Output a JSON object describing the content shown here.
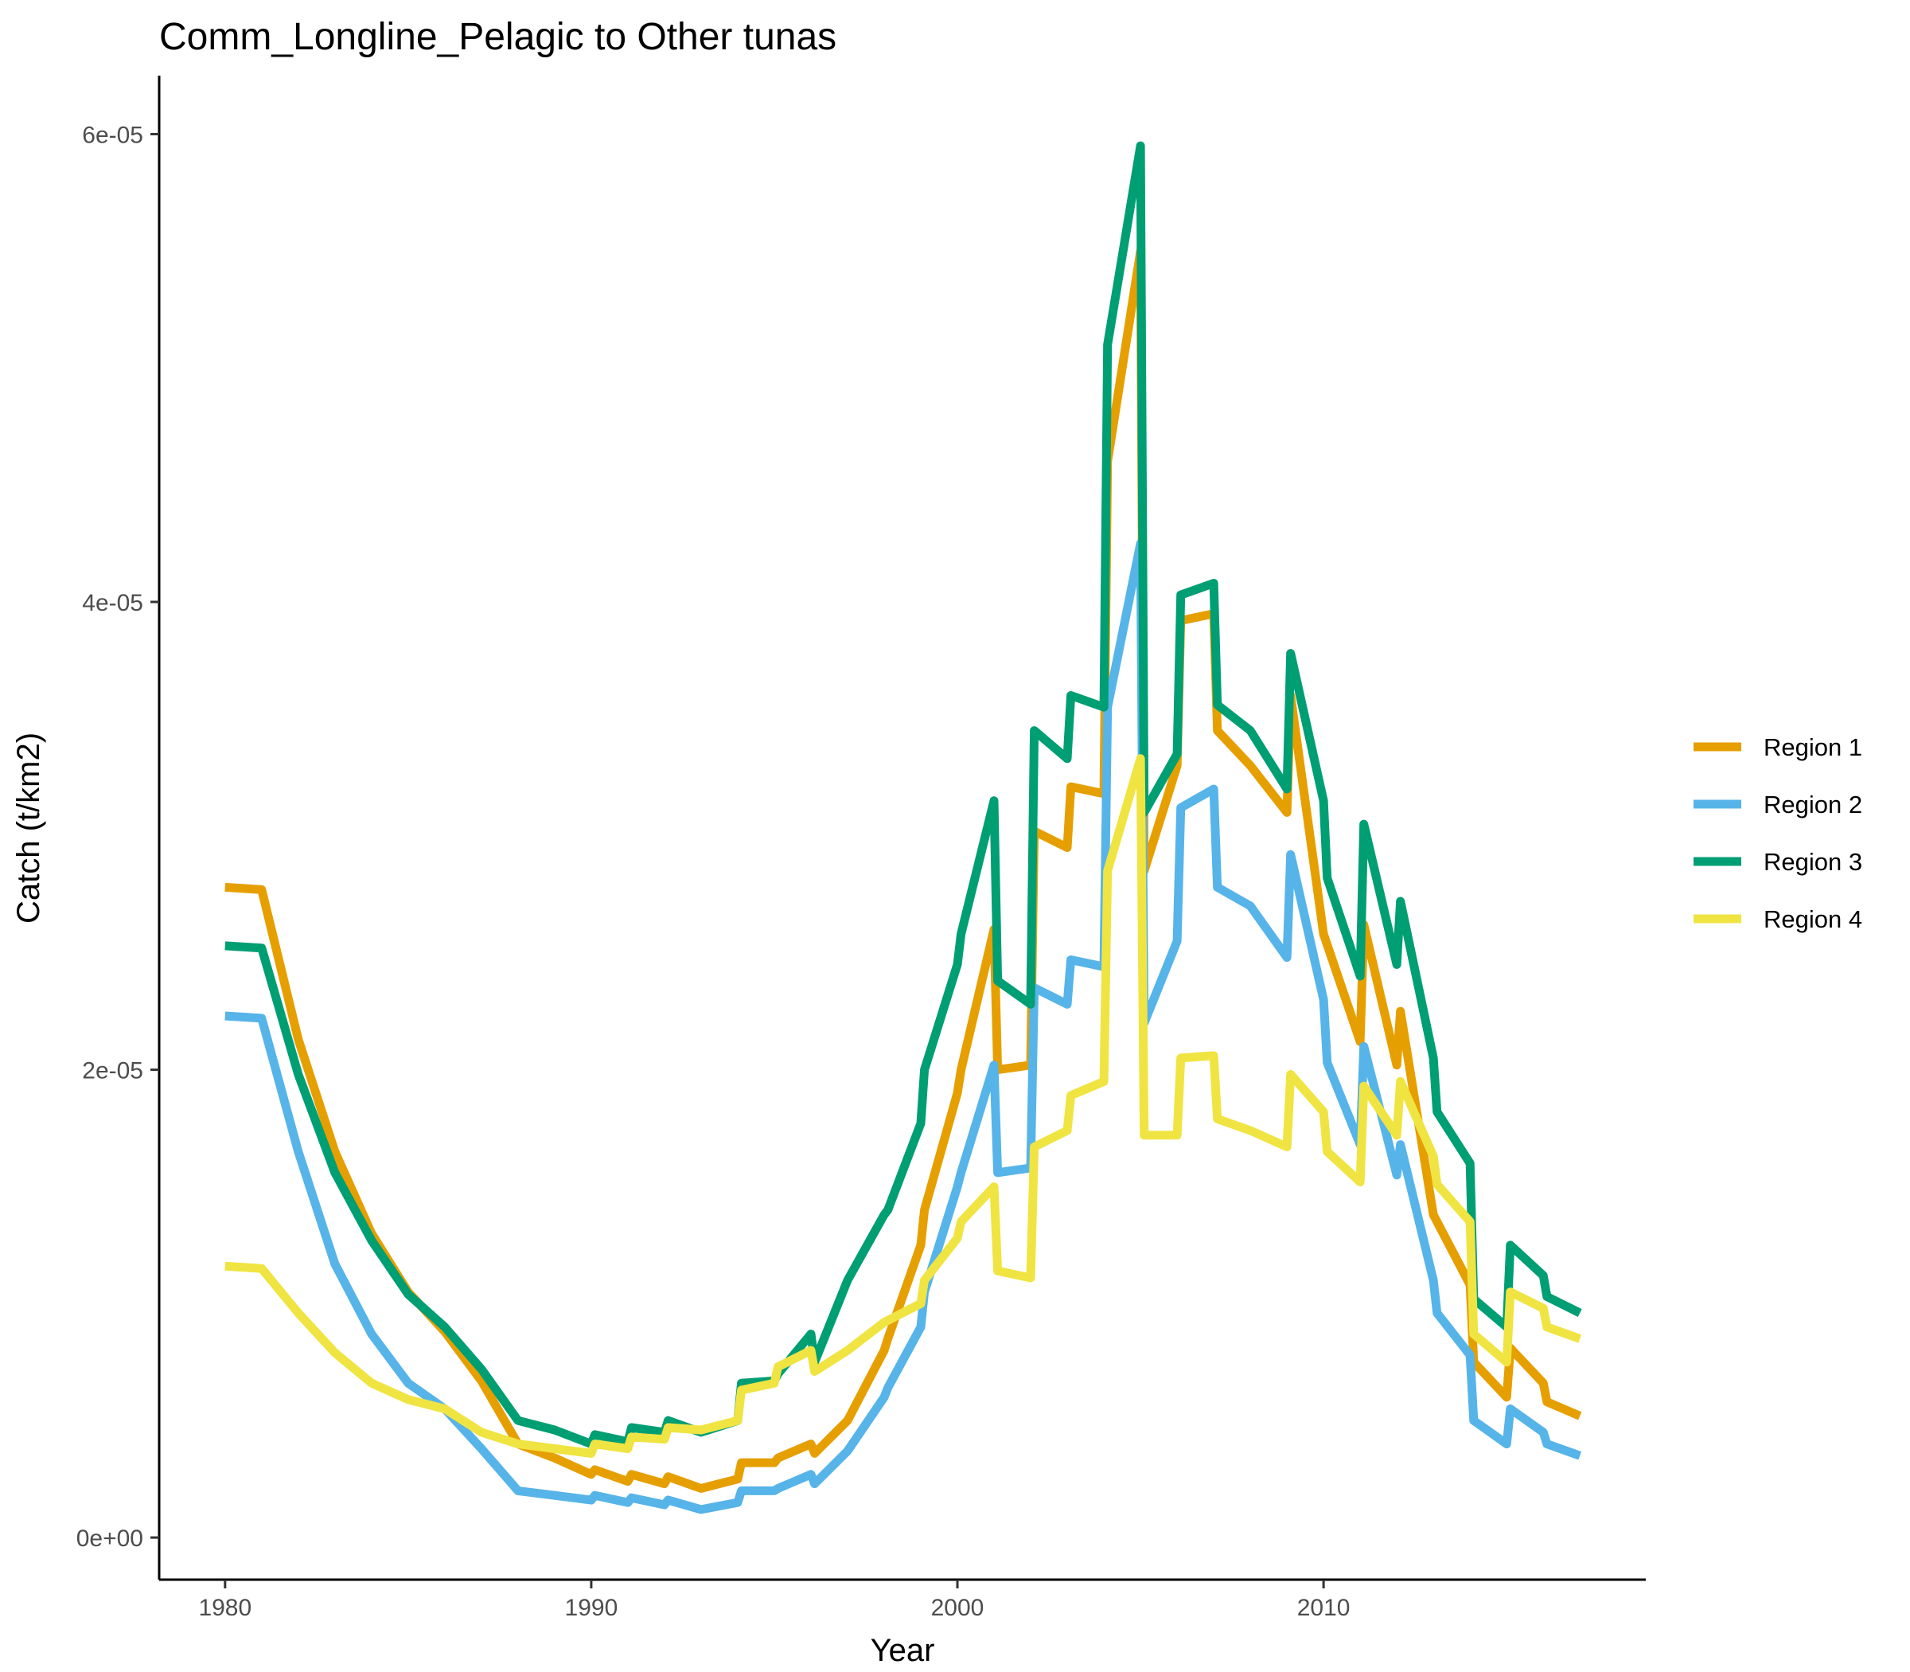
{
  "chart_data": {
    "type": "line",
    "title": "Comm_Longline_Pelagic to Other tunas",
    "xlabel": "Year",
    "ylabel": "Catch (t/km2)",
    "xlim": [
      1978.2,
      2018.8
    ],
    "ylim": [
      -1.8e-06,
      6.25e-05
    ],
    "x_ticks": [
      1980,
      1990,
      2000,
      2010
    ],
    "x_tick_labels": [
      "1980",
      "1990",
      "2000",
      "2010"
    ],
    "y_ticks": [
      0,
      2e-05,
      4e-05,
      6e-05
    ],
    "y_tick_labels": [
      "0e+00",
      "2e-05",
      "4e-05",
      "6e-05"
    ],
    "grid": false,
    "legend_position": "right",
    "series": [
      {
        "name": "Region 1",
        "color": "#E69F00",
        "points": [
          [
            1980,
            2.78e-05
          ],
          [
            1981,
            2.77e-05
          ],
          [
            1982,
            2.13e-05
          ],
          [
            1983,
            1.65e-05
          ],
          [
            1984,
            1.3e-05
          ],
          [
            1985,
            1.05e-05
          ],
          [
            1986,
            8.8e-06
          ],
          [
            1987,
            6.7e-06
          ],
          [
            1988,
            4e-06
          ],
          [
            1989,
            3.4e-06
          ],
          [
            1990,
            2.7e-06
          ],
          [
            1990.1,
            2.9e-06
          ],
          [
            1991,
            2.4e-06
          ],
          [
            1991.1,
            2.7e-06
          ],
          [
            1992,
            2.3e-06
          ],
          [
            1992.1,
            2.6e-06
          ],
          [
            1993,
            2.1e-06
          ],
          [
            1994,
            2.5e-06
          ],
          [
            1994.1,
            3.2e-06
          ],
          [
            1995,
            3.2e-06
          ],
          [
            1995.1,
            3.4e-06
          ],
          [
            1996,
            4e-06
          ],
          [
            1996.1,
            3.6e-06
          ],
          [
            1997,
            5e-06
          ],
          [
            1998,
            8e-06
          ],
          [
            1998.1,
            8.5e-06
          ],
          [
            1999,
            1.25e-05
          ],
          [
            1999.1,
            1.4e-05
          ],
          [
            2000,
            1.9e-05
          ],
          [
            2000.1,
            2e-05
          ],
          [
            2001,
            2.6e-05
          ],
          [
            2001.1,
            2e-05
          ],
          [
            2002,
            2.02e-05
          ],
          [
            2002.1,
            3.02e-05
          ],
          [
            2003,
            2.95e-05
          ],
          [
            2003.1,
            3.21e-05
          ],
          [
            2004,
            3.18e-05
          ],
          [
            2004.1,
            4.6e-05
          ],
          [
            2005,
            5.5e-05
          ],
          [
            2005.1,
            2.85e-05
          ],
          [
            2006,
            3.3e-05
          ],
          [
            2006.1,
            3.92e-05
          ],
          [
            2007,
            3.95e-05
          ],
          [
            2007.1,
            3.45e-05
          ],
          [
            2008,
            3.3e-05
          ],
          [
            2009,
            3.1e-05
          ],
          [
            2009.1,
            3.6e-05
          ],
          [
            2010,
            2.58e-05
          ],
          [
            2011,
            2.12e-05
          ],
          [
            2011.1,
            2.62e-05
          ],
          [
            2012,
            2.02e-05
          ],
          [
            2012.1,
            2.25e-05
          ],
          [
            2013,
            1.38e-05
          ],
          [
            2014,
            1.08e-05
          ],
          [
            2014.1,
            7.5e-06
          ],
          [
            2015,
            6e-06
          ],
          [
            2015.1,
            8.1e-06
          ],
          [
            2016,
            6.6e-06
          ],
          [
            2016.1,
            5.8e-06
          ],
          [
            2017,
            5.2e-06
          ]
        ]
      },
      {
        "name": "Region 2",
        "color": "#56B4E9",
        "points": [
          [
            1980,
            2.23e-05
          ],
          [
            1981,
            2.22e-05
          ],
          [
            1982,
            1.65e-05
          ],
          [
            1983,
            1.17e-05
          ],
          [
            1984,
            8.7e-06
          ],
          [
            1985,
            6.6e-06
          ],
          [
            1986,
            5.5e-06
          ],
          [
            1987,
            3.8e-06
          ],
          [
            1988,
            2e-06
          ],
          [
            1989,
            1.8e-06
          ],
          [
            1990,
            1.6e-06
          ],
          [
            1990.1,
            1.8e-06
          ],
          [
            1991,
            1.5e-06
          ],
          [
            1991.1,
            1.7e-06
          ],
          [
            1992,
            1.4e-06
          ],
          [
            1992.1,
            1.6e-06
          ],
          [
            1993,
            1.2e-06
          ],
          [
            1994,
            1.5e-06
          ],
          [
            1994.1,
            2e-06
          ],
          [
            1995,
            2e-06
          ],
          [
            1995.1,
            2.1e-06
          ],
          [
            1996,
            2.7e-06
          ],
          [
            1996.1,
            2.3e-06
          ],
          [
            1997,
            3.7e-06
          ],
          [
            1998,
            6e-06
          ],
          [
            1998.1,
            6.4e-06
          ],
          [
            1999,
            9e-06
          ],
          [
            1999.1,
            1.05e-05
          ],
          [
            2000,
            1.5e-05
          ],
          [
            2000.1,
            1.56e-05
          ],
          [
            2001,
            2.02e-05
          ],
          [
            2001.1,
            1.56e-05
          ],
          [
            2002,
            1.58e-05
          ],
          [
            2002.1,
            2.35e-05
          ],
          [
            2003,
            2.28e-05
          ],
          [
            2003.1,
            2.47e-05
          ],
          [
            2004,
            2.44e-05
          ],
          [
            2004.1,
            3.55e-05
          ],
          [
            2005,
            4.25e-05
          ],
          [
            2005.1,
            2.2e-05
          ],
          [
            2006,
            2.55e-05
          ],
          [
            2006.1,
            3.12e-05
          ],
          [
            2007,
            3.2e-05
          ],
          [
            2007.1,
            2.78e-05
          ],
          [
            2008,
            2.7e-05
          ],
          [
            2009,
            2.48e-05
          ],
          [
            2009.1,
            2.92e-05
          ],
          [
            2010,
            2.3e-05
          ],
          [
            2010.1,
            2.03e-05
          ],
          [
            2011,
            1.68e-05
          ],
          [
            2011.1,
            2.1e-05
          ],
          [
            2012,
            1.55e-05
          ],
          [
            2012.1,
            1.68e-05
          ],
          [
            2013,
            1.1e-05
          ],
          [
            2013.1,
            9.6e-06
          ],
          [
            2014,
            7.8e-06
          ],
          [
            2014.1,
            5e-06
          ],
          [
            2015,
            4e-06
          ],
          [
            2015.1,
            5.5e-06
          ],
          [
            2016,
            4.5e-06
          ],
          [
            2016.1,
            4e-06
          ],
          [
            2017,
            3.5e-06
          ]
        ]
      },
      {
        "name": "Region 3",
        "color": "#009E73",
        "points": [
          [
            1980,
            2.53e-05
          ],
          [
            1981,
            2.52e-05
          ],
          [
            1982,
            1.98e-05
          ],
          [
            1983,
            1.56e-05
          ],
          [
            1984,
            1.27e-05
          ],
          [
            1985,
            1.04e-05
          ],
          [
            1986,
            9e-06
          ],
          [
            1987,
            7.2e-06
          ],
          [
            1988,
            5e-06
          ],
          [
            1989,
            4.6e-06
          ],
          [
            1990,
            4e-06
          ],
          [
            1990.1,
            4.4e-06
          ],
          [
            1991,
            4.1e-06
          ],
          [
            1991.1,
            4.7e-06
          ],
          [
            1992,
            4.5e-06
          ],
          [
            1992.1,
            5e-06
          ],
          [
            1993,
            4.5e-06
          ],
          [
            1994,
            5e-06
          ],
          [
            1994.1,
            6.6e-06
          ],
          [
            1995,
            6.7e-06
          ],
          [
            1995.1,
            7e-06
          ],
          [
            1996,
            8.7e-06
          ],
          [
            1996.1,
            7.5e-06
          ],
          [
            1997,
            1.1e-05
          ],
          [
            1998,
            1.38e-05
          ],
          [
            1998.1,
            1.4e-05
          ],
          [
            1999,
            1.77e-05
          ],
          [
            1999.1,
            2e-05
          ],
          [
            2000,
            2.45e-05
          ],
          [
            2000.1,
            2.58e-05
          ],
          [
            2001,
            3.15e-05
          ],
          [
            2001.1,
            2.38e-05
          ],
          [
            2002,
            2.28e-05
          ],
          [
            2002.1,
            3.45e-05
          ],
          [
            2003,
            3.33e-05
          ],
          [
            2003.1,
            3.6e-05
          ],
          [
            2004,
            3.55e-05
          ],
          [
            2004.1,
            5.1e-05
          ],
          [
            2005,
            5.95e-05
          ],
          [
            2005.1,
            3.1e-05
          ],
          [
            2006,
            3.35e-05
          ],
          [
            2006.1,
            4.03e-05
          ],
          [
            2007,
            4.08e-05
          ],
          [
            2007.1,
            3.56e-05
          ],
          [
            2008,
            3.45e-05
          ],
          [
            2009,
            3.2e-05
          ],
          [
            2009.1,
            3.78e-05
          ],
          [
            2010,
            3.15e-05
          ],
          [
            2010.1,
            2.82e-05
          ],
          [
            2011,
            2.4e-05
          ],
          [
            2011.1,
            3.05e-05
          ],
          [
            2012,
            2.45e-05
          ],
          [
            2012.1,
            2.72e-05
          ],
          [
            2013,
            2.05e-05
          ],
          [
            2013.1,
            1.82e-05
          ],
          [
            2014,
            1.6e-05
          ],
          [
            2014.1,
            1.02e-05
          ],
          [
            2015,
            9e-06
          ],
          [
            2015.1,
            1.25e-05
          ],
          [
            2016,
            1.12e-05
          ],
          [
            2016.1,
            1.03e-05
          ],
          [
            2017,
            9.6e-06
          ]
        ]
      },
      {
        "name": "Region 4",
        "color": "#F0E442",
        "points": [
          [
            1980,
            1.16e-05
          ],
          [
            1981,
            1.15e-05
          ],
          [
            1982,
            9.6e-06
          ],
          [
            1983,
            7.9e-06
          ],
          [
            1984,
            6.6e-06
          ],
          [
            1985,
            5.9e-06
          ],
          [
            1986,
            5.5e-06
          ],
          [
            1987,
            4.5e-06
          ],
          [
            1988,
            4e-06
          ],
          [
            1989,
            3.8e-06
          ],
          [
            1990,
            3.6e-06
          ],
          [
            1990.1,
            4e-06
          ],
          [
            1991,
            3.8e-06
          ],
          [
            1991.1,
            4.3e-06
          ],
          [
            1992,
            4.2e-06
          ],
          [
            1992.1,
            4.7e-06
          ],
          [
            1993,
            4.6e-06
          ],
          [
            1994,
            5e-06
          ],
          [
            1994.1,
            6.3e-06
          ],
          [
            1995,
            6.6e-06
          ],
          [
            1995.1,
            7.3e-06
          ],
          [
            1996,
            8e-06
          ],
          [
            1996.1,
            7.1e-06
          ],
          [
            1997,
            8e-06
          ],
          [
            1998,
            9.2e-06
          ],
          [
            1999,
            1e-05
          ],
          [
            1999.1,
            1.1e-05
          ],
          [
            2000,
            1.28e-05
          ],
          [
            2000.1,
            1.35e-05
          ],
          [
            2001,
            1.5e-05
          ],
          [
            2001.1,
            1.14e-05
          ],
          [
            2002,
            1.11e-05
          ],
          [
            2002.1,
            1.67e-05
          ],
          [
            2003,
            1.74e-05
          ],
          [
            2003.1,
            1.89e-05
          ],
          [
            2004,
            1.95e-05
          ],
          [
            2004.1,
            2.85e-05
          ],
          [
            2005,
            3.33e-05
          ],
          [
            2005.1,
            1.72e-05
          ],
          [
            2006,
            1.72e-05
          ],
          [
            2006.1,
            2.05e-05
          ],
          [
            2007,
            2.06e-05
          ],
          [
            2007.1,
            1.79e-05
          ],
          [
            2008,
            1.74e-05
          ],
          [
            2009,
            1.67e-05
          ],
          [
            2009.1,
            1.98e-05
          ],
          [
            2010,
            1.82e-05
          ],
          [
            2010.1,
            1.65e-05
          ],
          [
            2011,
            1.52e-05
          ],
          [
            2011.1,
            1.93e-05
          ],
          [
            2012,
            1.72e-05
          ],
          [
            2012.1,
            1.95e-05
          ],
          [
            2013,
            1.63e-05
          ],
          [
            2013.1,
            1.51e-05
          ],
          [
            2014,
            1.35e-05
          ],
          [
            2014.1,
            8.7e-06
          ],
          [
            2015,
            7.5e-06
          ],
          [
            2015.1,
            1.05e-05
          ],
          [
            2016,
            9.8e-06
          ],
          [
            2016.1,
            9e-06
          ],
          [
            2017,
            8.5e-06
          ]
        ]
      }
    ]
  }
}
